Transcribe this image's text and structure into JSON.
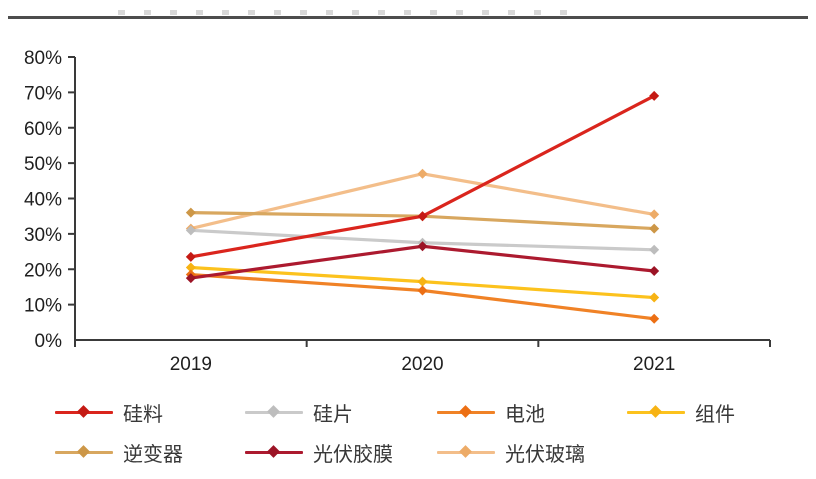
{
  "page": {
    "background": "#ffffff",
    "divider_color": "#4d4d4d",
    "axis_color": "#3a3a3a",
    "text_color": "#1f1f1f"
  },
  "chart_data": {
    "type": "line",
    "title": "",
    "xlabel": "",
    "ylabel": "",
    "categories": [
      "2019",
      "2020",
      "2021"
    ],
    "series": [
      {
        "name": "硅料",
        "color": "#da251d",
        "marker_color": "#c51a14",
        "values": [
          23.5,
          35.0,
          69.0
        ]
      },
      {
        "name": "硅片",
        "color": "#cacaca",
        "marker_color": "#bdbdbd",
        "values": [
          31.0,
          27.5,
          25.5
        ]
      },
      {
        "name": "电池",
        "color": "#f08226",
        "marker_color": "#ec6f14",
        "values": [
          18.5,
          14.0,
          6.0
        ]
      },
      {
        "name": "组件",
        "color": "#fcc21d",
        "marker_color": "#f7b314",
        "values": [
          20.5,
          16.5,
          12.0
        ]
      },
      {
        "name": "逆变器",
        "color": "#d8a75f",
        "marker_color": "#cd9747",
        "values": [
          36.0,
          35.0,
          31.5
        ]
      },
      {
        "name": "光伏胶膜",
        "color": "#ac1a2f",
        "marker_color": "#9c1426",
        "values": [
          17.5,
          26.5,
          19.5
        ]
      },
      {
        "name": "光伏玻璃",
        "color": "#f3be8a",
        "marker_color": "#edab67",
        "values": [
          31.5,
          47.0,
          35.5
        ]
      }
    ],
    "ylim": [
      0,
      80
    ],
    "ytick_step": 10,
    "ytick_suffix": "%",
    "grid": false,
    "marker": "diamond",
    "legend_position": "bottom"
  }
}
